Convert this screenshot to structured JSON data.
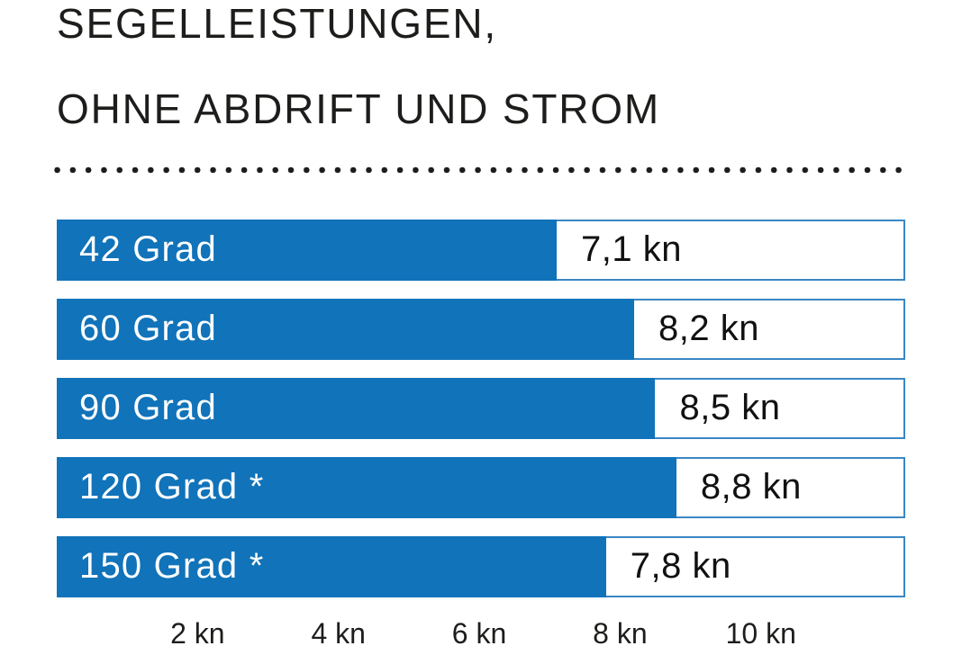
{
  "header": {
    "title_line1": "SEGELLEISTUNGEN,",
    "title_line2": "OHNE ABDRIFT UND STROM"
  },
  "colors": {
    "bar_blue": "#1173B9",
    "row_border_blue": "#3B87C4",
    "title_text": "#1D1D1B",
    "value_text": "#111111",
    "bar_label_text": "#FFFFFF",
    "background": "#FFFFFF"
  },
  "chart_data": {
    "type": "bar",
    "orientation": "horizontal",
    "title": "SEGELLEISTUNGEN, OHNE ABDRIFT UND STROM",
    "categories": [
      "42 Grad",
      "60 Grad",
      "90 Grad",
      "120 Grad *",
      "150 Grad *"
    ],
    "values": [
      7.1,
      8.2,
      8.5,
      8.8,
      7.8
    ],
    "value_labels": [
      "7,1 kn",
      "8,2 kn",
      "8,5 kn",
      "8,8 kn",
      "7,8 kn"
    ],
    "unit": "kn",
    "xlabel": "",
    "ylabel": "",
    "xlim": [
      0,
      12.05
    ],
    "x_tick_values": [
      2,
      4,
      6,
      8,
      10
    ],
    "x_tick_labels": [
      "2 kn",
      "4 kn",
      "6 kn",
      "8 kn",
      "10 kn"
    ],
    "grid": false,
    "legend": false,
    "bar_label_position": "inside-left",
    "value_label_position": "right-of-bar"
  }
}
